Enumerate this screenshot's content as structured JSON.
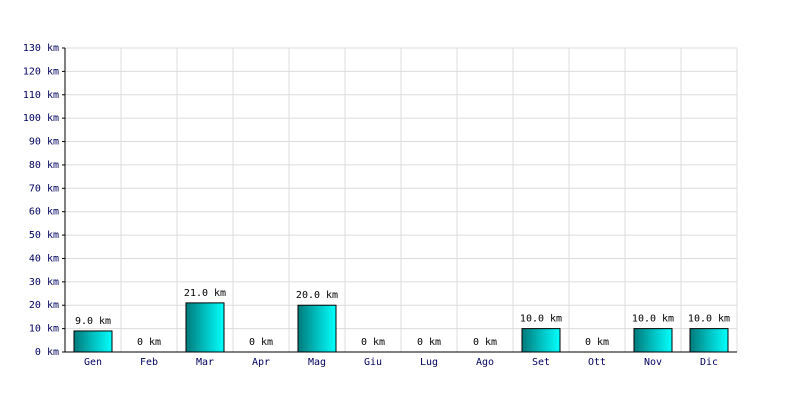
{
  "chart_data": {
    "type": "bar",
    "categories": [
      "Gen",
      "Feb",
      "Mar",
      "Apr",
      "Mag",
      "Giu",
      "Lug",
      "Ago",
      "Set",
      "Ott",
      "Nov",
      "Dic"
    ],
    "values": [
      9,
      0,
      21,
      0,
      20,
      0,
      0,
      0,
      10,
      0,
      10,
      10
    ],
    "value_labels": [
      "9.0 km",
      "0 km",
      "21.0 km",
      "0 km",
      "20.0 km",
      "0 km",
      "0 km",
      "0 km",
      "10.0 km",
      "0 km",
      "10.0 km",
      "10.0 km"
    ],
    "color": "#00cccc",
    "ylim": [
      0,
      130
    ],
    "yticks": [
      {
        "value": 0,
        "label": "0 km"
      },
      {
        "value": 10,
        "label": "10 km"
      },
      {
        "value": 20,
        "label": "20 km"
      },
      {
        "value": 30,
        "label": "30 km"
      },
      {
        "value": 40,
        "label": "40 km"
      },
      {
        "value": 50,
        "label": "50 km"
      },
      {
        "value": 60,
        "label": "60 km"
      },
      {
        "value": 70,
        "label": "70 km"
      },
      {
        "value": 80,
        "label": "80 km"
      },
      {
        "value": 90,
        "label": "90 km"
      },
      {
        "value": 100,
        "label": "100 km"
      },
      {
        "value": 110,
        "label": "110 km"
      },
      {
        "value": 120,
        "label": "120 km"
      },
      {
        "value": 130,
        "label": "130 km"
      }
    ],
    "grid": true
  }
}
